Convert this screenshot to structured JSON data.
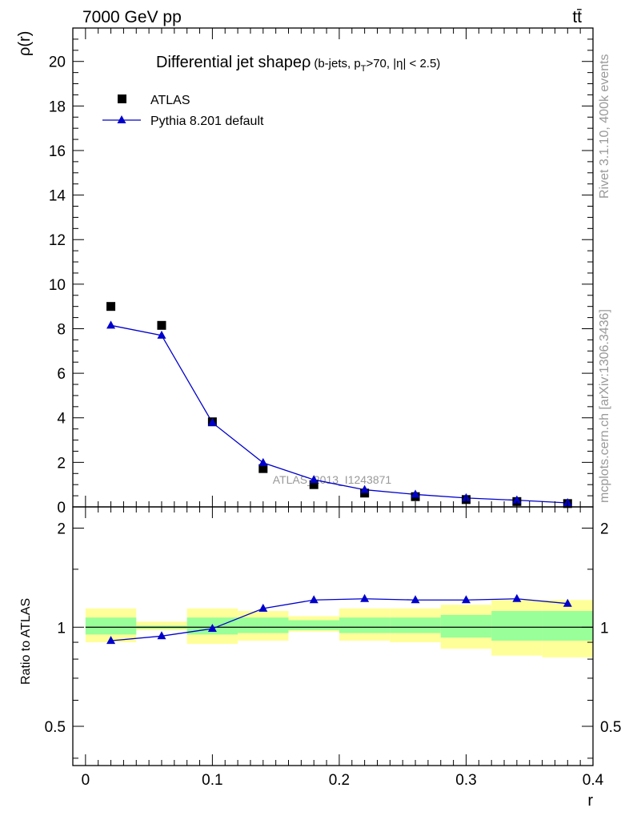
{
  "header": {
    "energy_label": "7000 GeV pp",
    "process_label": "tt̄"
  },
  "side_labels": {
    "rivet": "Rivet 3.1.10,  400k events",
    "mcplots": "mcplots.cern.ch [arXiv:1306.3436]"
  },
  "colors": {
    "data_marker": "#000000",
    "mc_line": "#0000cc",
    "band_inner": "#99ff99",
    "band_outer": "#ffff99",
    "watermark": "#999999"
  },
  "chart_data": [
    {
      "type": "scatter",
      "title": "Differential jet shapeρ",
      "title_suffix": "(b-jets, p",
      "title_sub": "T",
      "title_tail": ">70, |η| < 2.5)",
      "ylabel": "ρ(r)",
      "xlabel": "r",
      "watermark": "ATLAS_2013_I1243871",
      "xlim": [
        -0.01,
        0.4
      ],
      "ylim": [
        0,
        21.5
      ],
      "yticks": [
        0,
        2,
        4,
        6,
        8,
        10,
        12,
        14,
        16,
        18,
        20
      ],
      "ytick_labels": [
        "0",
        "2",
        "4",
        "6",
        "8",
        "10",
        "12",
        "14",
        "16",
        "18",
        "20"
      ],
      "legend_position": "top-left",
      "x": [
        0.02,
        0.06,
        0.1,
        0.14,
        0.18,
        0.22,
        0.26,
        0.3,
        0.34,
        0.38
      ],
      "series": [
        {
          "name": "ATLAS",
          "marker": "square",
          "values": [
            9.0,
            8.15,
            3.82,
            1.72,
            1.0,
            0.62,
            0.46,
            0.33,
            0.24,
            0.15
          ]
        },
        {
          "name": "Pythia 8.201 default",
          "marker": "triangle",
          "values": [
            8.15,
            7.7,
            3.78,
            1.98,
            1.22,
            0.77,
            0.56,
            0.4,
            0.3,
            0.18
          ]
        }
      ]
    },
    {
      "type": "line",
      "ylabel": "Ratio to ATLAS",
      "xlabel": "r",
      "xlim": [
        -0.01,
        0.4
      ],
      "ylim": [
        0.38,
        2.32
      ],
      "yscale": "log",
      "xticks": [
        0,
        0.1,
        0.2,
        0.3,
        0.4
      ],
      "xtick_labels": [
        "0",
        "0.1",
        "0.2",
        "0.3",
        "0.4"
      ],
      "yticks": [
        0.5,
        1,
        2
      ],
      "ytick_labels": [
        "0.5",
        "1",
        "2"
      ],
      "bin_edges": [
        0,
        0.04,
        0.08,
        0.12,
        0.16,
        0.2,
        0.24,
        0.28,
        0.32,
        0.36,
        0.4
      ],
      "band_inner": [
        [
          0.95,
          1.07
        ],
        [
          0.99,
          1.01
        ],
        [
          0.95,
          1.07
        ],
        [
          0.96,
          1.07
        ],
        [
          0.98,
          1.05
        ],
        [
          0.96,
          1.07
        ],
        [
          0.96,
          1.07
        ],
        [
          0.93,
          1.09
        ],
        [
          0.91,
          1.12
        ],
        [
          0.91,
          1.12
        ]
      ],
      "band_outer": [
        [
          0.9,
          1.14
        ],
        [
          0.98,
          1.04
        ],
        [
          0.89,
          1.14
        ],
        [
          0.91,
          1.12
        ],
        [
          0.97,
          1.08
        ],
        [
          0.91,
          1.14
        ],
        [
          0.9,
          1.14
        ],
        [
          0.86,
          1.17
        ],
        [
          0.82,
          1.21
        ],
        [
          0.81,
          1.21
        ]
      ],
      "x": [
        0.02,
        0.06,
        0.1,
        0.14,
        0.18,
        0.22,
        0.26,
        0.3,
        0.34,
        0.38
      ],
      "series": [
        {
          "name": "Pythia 8.201 default / ATLAS",
          "values": [
            0.91,
            0.94,
            0.99,
            1.14,
            1.21,
            1.22,
            1.21,
            1.21,
            1.22,
            1.18
          ]
        }
      ]
    }
  ]
}
